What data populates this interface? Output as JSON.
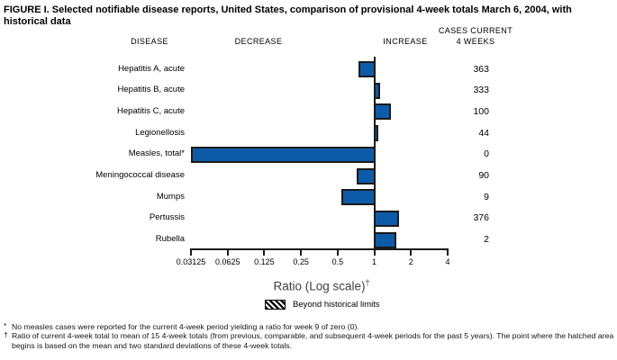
{
  "figure": {
    "title": "FIGURE I. Selected notifiable disease reports, United States, comparison of provisional 4-week totals March 6, 2004, with historical data",
    "column_headers": {
      "disease": "DISEASE",
      "decrease": "DECREASE",
      "increase": "INCREASE",
      "cases_line1": "CASES CURRENT",
      "cases_line2": "4 WEEKS"
    }
  },
  "chart_data": {
    "type": "bar",
    "orientation": "horizontal",
    "scale": "log",
    "title": "Selected notifiable disease reports, comparison of provisional 4-week totals March 6, 2004, with historical data",
    "xlabel": "Ratio (Log scale)",
    "xlabel_superscript": "†",
    "xlim": [
      0.03125,
      4
    ],
    "baseline": 1,
    "x_ticks": [
      0.03125,
      0.0625,
      0.125,
      0.25,
      0.5,
      1,
      2,
      4
    ],
    "x_tick_labels": [
      "0.03125",
      "0.0625",
      "0.125",
      "0.25",
      "0.5",
      "1",
      "2",
      "4"
    ],
    "grid": false,
    "legend_position": "bottom",
    "rows": [
      {
        "label": "Hepatitis A, acute",
        "ratio": 0.74,
        "cases": "363"
      },
      {
        "label": "Hepatitis B, acute",
        "ratio": 1.11,
        "cases": "333"
      },
      {
        "label": "Hepatitis C, acute",
        "ratio": 1.37,
        "cases": "100"
      },
      {
        "label": "Legionellosis",
        "ratio": 1.07,
        "cases": "44"
      },
      {
        "label": "Measles, total*",
        "ratio": 0,
        "cases": "0"
      },
      {
        "label": "Meningococcal disease",
        "ratio": 0.72,
        "cases": "90"
      },
      {
        "label": "Mumps",
        "ratio": 0.54,
        "cases": "9"
      },
      {
        "label": "Pertussis",
        "ratio": 1.59,
        "cases": "376"
      },
      {
        "label": "Rubella",
        "ratio": 1.52,
        "cases": "2"
      }
    ],
    "legend": {
      "label": "Beyond historical limits",
      "swatch_style": "black-diagonal-hatch"
    },
    "colors": {
      "bar_fill": "#0d5ba8",
      "bar_border": "#1a1a1a",
      "axis": "#1a1a1a"
    }
  },
  "footnotes": [
    {
      "marker": "*",
      "text": "No measles cases were reported for the current 4-week period yielding a ratio for week 9 of zero (0)."
    },
    {
      "marker": "†",
      "text": "Ratio of current 4-week total to mean of 15 4-week totals (from previous, comparable, and subsequent 4-week periods for the past 5 years). The point where the hatched area begins is based on the mean and two standard deviations of these 4-week totals."
    }
  ]
}
